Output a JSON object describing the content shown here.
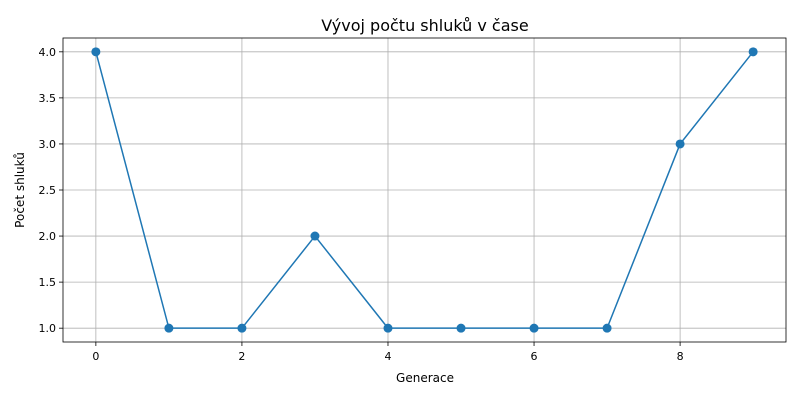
{
  "chart_data": {
    "type": "line",
    "title": "Vývoj počtu shluků v čase",
    "xlabel": "Generace",
    "ylabel": "Počet shluků",
    "x": [
      0,
      1,
      2,
      3,
      4,
      5,
      6,
      7,
      8,
      9
    ],
    "series": [
      {
        "values": [
          4,
          1,
          1,
          2,
          1,
          1,
          1,
          1,
          3,
          4
        ],
        "color": "#1f77b4",
        "marker": "circle"
      }
    ],
    "xlim": [
      -0.45,
      9.45
    ],
    "ylim": [
      0.85,
      4.15
    ],
    "xticks": [
      0,
      2,
      4,
      6,
      8
    ],
    "xtick_labels": [
      "0",
      "2",
      "4",
      "6",
      "8"
    ],
    "yticks": [
      1.0,
      1.5,
      2.0,
      2.5,
      3.0,
      3.5,
      4.0
    ],
    "ytick_labels": [
      "1.0",
      "1.5",
      "2.0",
      "2.5",
      "3.0",
      "3.5",
      "4.0"
    ],
    "grid": true
  }
}
